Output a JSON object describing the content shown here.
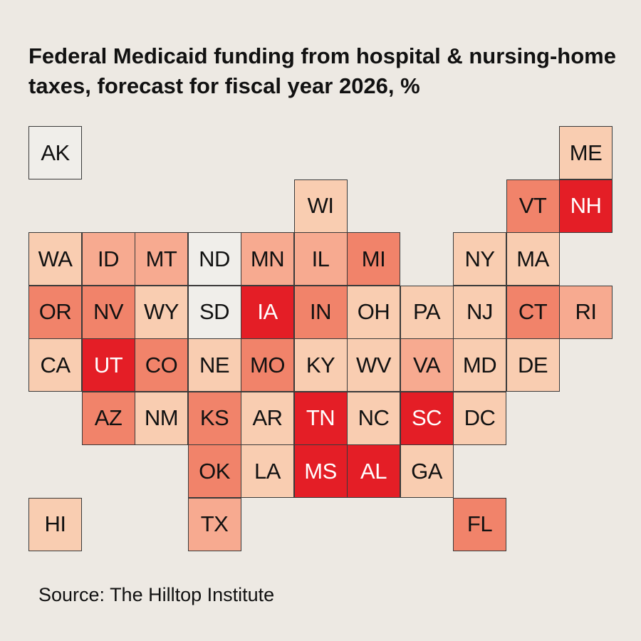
{
  "title": "Federal Medicaid funding from hospital & nursing-home taxes, forecast for fiscal year 2026, %",
  "source": "Source: The Hilltop Institute",
  "colors": {
    "background": "#ede9e3",
    "tier_0": "#f0eeea",
    "tier_1": "#f9cdb1",
    "tier_2": "#f7aa90",
    "tier_3": "#f1836a",
    "tier_4": "#e41e26"
  },
  "states": [
    {
      "code": "AK",
      "tier": 0
    },
    {
      "code": "ME",
      "tier": 1
    },
    {
      "code": "WI",
      "tier": 1
    },
    {
      "code": "VT",
      "tier": 3
    },
    {
      "code": "NH",
      "tier": 4
    },
    {
      "code": "WA",
      "tier": 1
    },
    {
      "code": "ID",
      "tier": 2
    },
    {
      "code": "MT",
      "tier": 2
    },
    {
      "code": "ND",
      "tier": 0
    },
    {
      "code": "MN",
      "tier": 2
    },
    {
      "code": "IL",
      "tier": 2
    },
    {
      "code": "MI",
      "tier": 3
    },
    {
      "code": "NY",
      "tier": 1
    },
    {
      "code": "MA",
      "tier": 1
    },
    {
      "code": "OR",
      "tier": 3
    },
    {
      "code": "NV",
      "tier": 3
    },
    {
      "code": "WY",
      "tier": 1
    },
    {
      "code": "SD",
      "tier": 0
    },
    {
      "code": "IA",
      "tier": 4
    },
    {
      "code": "IN",
      "tier": 3
    },
    {
      "code": "OH",
      "tier": 1
    },
    {
      "code": "PA",
      "tier": 1
    },
    {
      "code": "NJ",
      "tier": 1
    },
    {
      "code": "CT",
      "tier": 3
    },
    {
      "code": "RI",
      "tier": 2
    },
    {
      "code": "CA",
      "tier": 1
    },
    {
      "code": "UT",
      "tier": 4
    },
    {
      "code": "CO",
      "tier": 3
    },
    {
      "code": "NE",
      "tier": 1
    },
    {
      "code": "MO",
      "tier": 3
    },
    {
      "code": "KY",
      "tier": 1
    },
    {
      "code": "WV",
      "tier": 1
    },
    {
      "code": "VA",
      "tier": 2
    },
    {
      "code": "MD",
      "tier": 1
    },
    {
      "code": "DE",
      "tier": 1
    },
    {
      "code": "AZ",
      "tier": 3
    },
    {
      "code": "NM",
      "tier": 1
    },
    {
      "code": "KS",
      "tier": 3
    },
    {
      "code": "AR",
      "tier": 1
    },
    {
      "code": "TN",
      "tier": 4
    },
    {
      "code": "NC",
      "tier": 1
    },
    {
      "code": "SC",
      "tier": 4
    },
    {
      "code": "DC",
      "tier": 1
    },
    {
      "code": "OK",
      "tier": 3
    },
    {
      "code": "LA",
      "tier": 1
    },
    {
      "code": "MS",
      "tier": 4
    },
    {
      "code": "AL",
      "tier": 4
    },
    {
      "code": "GA",
      "tier": 1
    },
    {
      "code": "HI",
      "tier": 1
    },
    {
      "code": "TX",
      "tier": 2
    },
    {
      "code": "FL",
      "tier": 3
    }
  ]
}
